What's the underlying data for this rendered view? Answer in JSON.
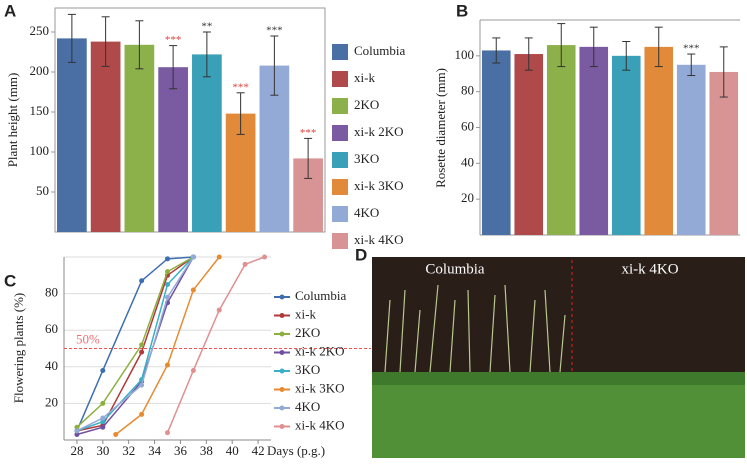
{
  "chart_data": [
    {
      "type": "bar",
      "panel_label": "A",
      "ylabel": "Plant height (mm)",
      "categories": [
        "Columbia",
        "xi-k",
        "2KO",
        "xi-k 2KO",
        "3KO",
        "xi-k 3KO",
        "4KO",
        "xi-k 4KO"
      ],
      "colors": [
        "#4a6fa5",
        "#b04a4a",
        "#8cb04a",
        "#7a5aa0",
        "#3aa0b8",
        "#e08a3a",
        "#94aad6",
        "#d89494"
      ],
      "values": [
        242,
        238,
        234,
        206,
        222,
        148,
        208,
        92
      ],
      "errors": [
        30,
        31,
        30,
        27,
        28,
        26,
        37,
        25
      ],
      "significance": [
        null,
        null,
        null,
        "***",
        "**",
        "***",
        "***",
        "***"
      ],
      "significance_colors": [
        null,
        null,
        null,
        "#e0403a",
        "#333333",
        "#e0403a",
        "#333333",
        "#e0403a"
      ],
      "ylim": [
        0,
        280
      ],
      "yticks": [
        50,
        100,
        150,
        200,
        250
      ]
    },
    {
      "type": "bar",
      "panel_label": "B",
      "ylabel": "Rosette diameter (mm)",
      "categories": [
        "Columbia",
        "xi-k",
        "2KO",
        "xi-k 2KO",
        "3KO",
        "xi-k 3KO",
        "4KO",
        "xi-k 4KO"
      ],
      "colors": [
        "#4a6fa5",
        "#b04a4a",
        "#8cb04a",
        "#7a5aa0",
        "#3aa0b8",
        "#e08a3a",
        "#94aad6",
        "#d89494"
      ],
      "values": [
        103,
        101,
        106,
        105,
        100,
        105,
        95,
        91
      ],
      "errors": [
        7,
        9,
        12,
        11,
        8,
        11,
        6,
        14
      ],
      "significance": [
        null,
        null,
        null,
        null,
        null,
        null,
        "***",
        null
      ],
      "significance_colors": [
        null,
        null,
        null,
        null,
        null,
        null,
        "#333333",
        null
      ],
      "ylim": [
        0,
        120
      ],
      "yticks": [
        20,
        40,
        60,
        80,
        100
      ]
    },
    {
      "type": "line",
      "panel_label": "C",
      "ylabel": "Flowering plants (%)",
      "xlabel": "Days (p.g.)",
      "annotation": "50%",
      "threshold": 50,
      "series": [
        {
          "name": "Columbia",
          "color": "#3d6fb0",
          "x": [
            28,
            30,
            33,
            35,
            37
          ],
          "values": [
            5,
            38,
            87,
            99,
            100
          ]
        },
        {
          "name": "xi-k",
          "color": "#b03a3a",
          "x": [
            28,
            30,
            33,
            35,
            37
          ],
          "values": [
            5,
            8,
            48,
            90,
            100
          ]
        },
        {
          "name": "2KO",
          "color": "#8cb040",
          "x": [
            28,
            30,
            33,
            35,
            37
          ],
          "values": [
            7,
            20,
            52,
            92,
            100
          ]
        },
        {
          "name": "xi-k 2KO",
          "color": "#7050a0",
          "x": [
            28,
            30,
            33,
            35,
            37
          ],
          "values": [
            3,
            7,
            32,
            75,
            100
          ]
        },
        {
          "name": "3KO",
          "color": "#3ab0c8",
          "x": [
            28,
            30,
            33,
            35,
            37
          ],
          "values": [
            5,
            10,
            33,
            85,
            100
          ]
        },
        {
          "name": "xi-k 3KO",
          "color": "#e88a30",
          "x": [
            31,
            33,
            35,
            37,
            39
          ],
          "values": [
            3,
            14,
            41,
            82,
            100
          ]
        },
        {
          "name": "4KO",
          "color": "#94aad6",
          "x": [
            28,
            30,
            33,
            35,
            37
          ],
          "values": [
            5,
            12,
            30,
            78,
            100
          ]
        },
        {
          "name": "xi-k 4KO",
          "color": "#e09090",
          "x": [
            35,
            37,
            39,
            41,
            42.5
          ],
          "values": [
            4,
            38,
            71,
            96,
            100
          ]
        }
      ],
      "xlim": [
        27,
        43
      ],
      "xticks": [
        28,
        30,
        32,
        34,
        36,
        38,
        40,
        42
      ],
      "ylim": [
        0,
        100
      ],
      "yticks": [
        20,
        40,
        60,
        80
      ],
      "grid": true
    }
  ],
  "photo": {
    "panel_label": "D",
    "left_label": "Columbia",
    "right_label": "xi-k 4KO"
  }
}
